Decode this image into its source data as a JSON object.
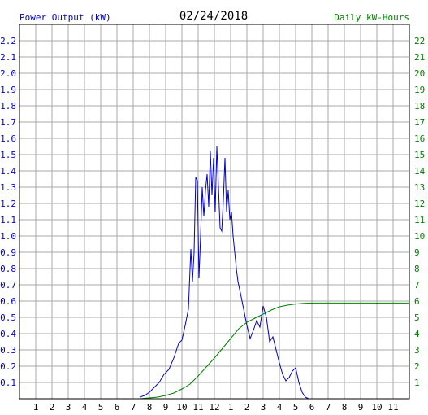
{
  "chart_data": {
    "type": "line",
    "title": "02/24/2018",
    "ylabel_left": "Power Output (kW)",
    "ylabel_right": "Daily kW-Hours",
    "grid": true,
    "ylim_left": [
      0,
      2.3
    ],
    "ylim_right": [
      0,
      23
    ],
    "xlim": [
      0,
      24
    ],
    "left_ticks": [
      "0.1",
      "0.2",
      "0.3",
      "0.4",
      "0.5",
      "0.6",
      "0.7",
      "0.8",
      "0.9",
      "1.0",
      "1.1",
      "1.2",
      "1.3",
      "1.4",
      "1.5",
      "1.6",
      "1.7",
      "1.8",
      "1.9",
      "2.0",
      "2.1",
      "2.2"
    ],
    "right_ticks": [
      "1",
      "2",
      "3",
      "4",
      "5",
      "6",
      "7",
      "8",
      "9",
      "10",
      "11",
      "12",
      "13",
      "14",
      "15",
      "16",
      "17",
      "18",
      "19",
      "20",
      "21",
      "22"
    ],
    "x_ticks": [
      "1",
      "2",
      "3",
      "4",
      "5",
      "6",
      "7",
      "8",
      "9",
      "10",
      "11",
      "12",
      "1",
      "2",
      "3",
      "4",
      "5",
      "6",
      "7",
      "8",
      "9",
      "10",
      "11"
    ],
    "colors": {
      "power": "#0000cc",
      "energy": "#008000",
      "left_axis_text": "#0000cc",
      "right_axis_text": "#008000",
      "grid": "#aaaaaa",
      "frame": "#000000"
    },
    "series": [
      {
        "name": "Power Output (kW)",
        "axis": "left",
        "x": [
          7.4,
          7.7,
          8.0,
          8.3,
          8.6,
          8.9,
          9.2,
          9.5,
          9.8,
          10.0,
          10.2,
          10.4,
          10.55,
          10.65,
          10.75,
          10.85,
          10.95,
          11.05,
          11.15,
          11.25,
          11.35,
          11.45,
          11.55,
          11.65,
          11.75,
          11.85,
          11.95,
          12.05,
          12.15,
          12.25,
          12.35,
          12.45,
          12.55,
          12.65,
          12.75,
          12.85,
          12.95,
          13.05,
          13.15,
          13.25,
          13.35,
          13.45,
          13.6,
          13.8,
          14.0,
          14.2,
          14.4,
          14.6,
          14.8,
          15.0,
          15.2,
          15.4,
          15.6,
          15.8,
          16.0,
          16.2,
          16.4,
          16.6,
          16.8,
          17.0,
          17.2,
          17.4,
          17.6,
          17.8,
          18.0,
          18.2
        ],
        "y": [
          0.01,
          0.02,
          0.04,
          0.07,
          0.1,
          0.15,
          0.18,
          0.25,
          0.34,
          0.36,
          0.45,
          0.55,
          0.92,
          0.72,
          0.9,
          1.36,
          1.34,
          0.74,
          1.0,
          1.3,
          1.12,
          1.28,
          1.38,
          1.18,
          1.52,
          1.25,
          1.48,
          1.15,
          1.55,
          1.3,
          1.05,
          1.03,
          1.22,
          1.48,
          1.15,
          1.28,
          1.1,
          1.15,
          1.0,
          0.9,
          0.8,
          0.72,
          0.65,
          0.55,
          0.45,
          0.37,
          0.42,
          0.48,
          0.44,
          0.57,
          0.5,
          0.35,
          0.38,
          0.3,
          0.22,
          0.15,
          0.11,
          0.13,
          0.17,
          0.19,
          0.1,
          0.04,
          0.01,
          0.0,
          0.0,
          0.0
        ]
      },
      {
        "name": "Daily kW-Hours",
        "axis": "right",
        "x": [
          7.4,
          8.0,
          8.5,
          9.0,
          9.5,
          10.0,
          10.5,
          11.0,
          11.5,
          12.0,
          12.5,
          13.0,
          13.5,
          14.0,
          14.5,
          15.0,
          15.5,
          16.0,
          16.5,
          17.0,
          17.5,
          18.0,
          18.5,
          19.0,
          20.0,
          21.0,
          22.0,
          23.0,
          24.0
        ],
        "y": [
          0.0,
          0.05,
          0.1,
          0.2,
          0.35,
          0.6,
          0.9,
          1.4,
          1.95,
          2.5,
          3.1,
          3.7,
          4.3,
          4.7,
          4.95,
          5.2,
          5.45,
          5.65,
          5.75,
          5.82,
          5.86,
          5.88,
          5.88,
          5.88,
          5.88,
          5.88,
          5.88,
          5.88,
          5.88
        ]
      }
    ]
  }
}
